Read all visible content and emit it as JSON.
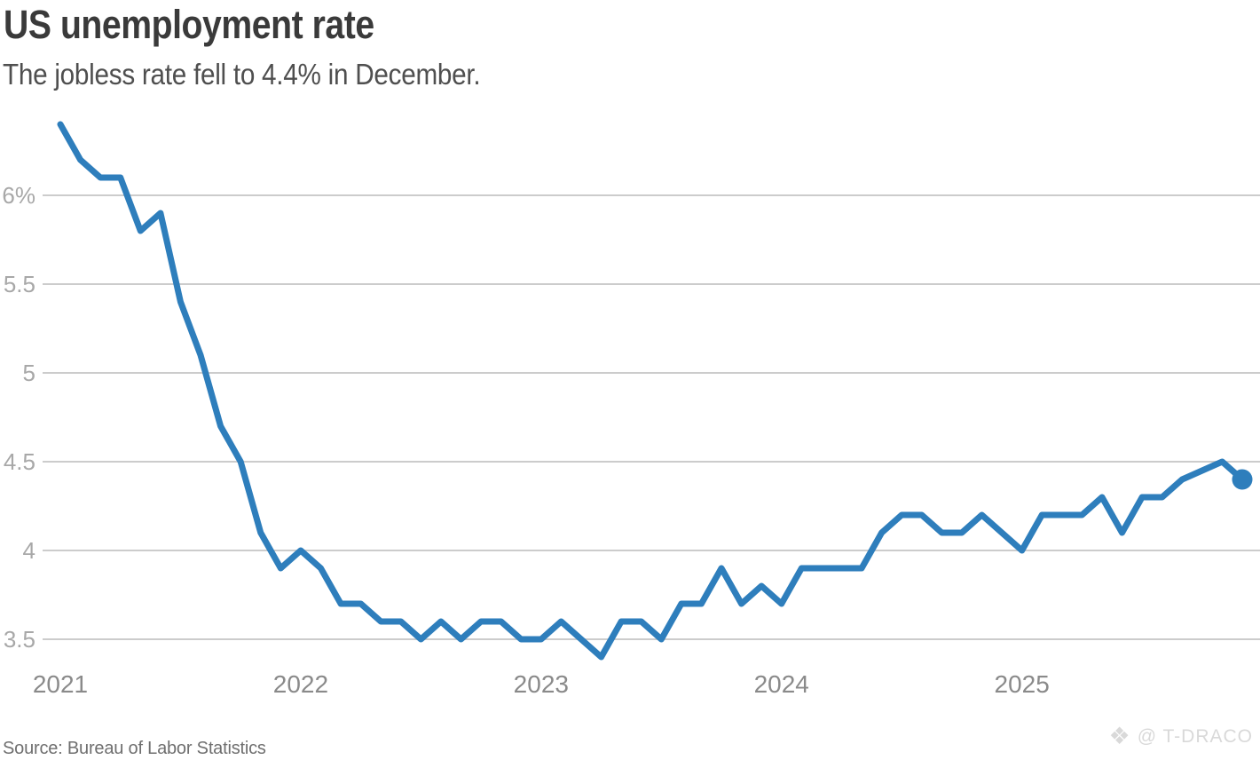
{
  "header": {
    "title": "US unemployment rate",
    "subtitle": "The jobless rate fell to 4.4% in December."
  },
  "footer": {
    "source": "Source: Bureau of Labor Statistics",
    "watermark_icon": "four-diamonds-icon",
    "watermark_icon_glyph": "❖",
    "watermark_text": "@ T-DRACO"
  },
  "colors": {
    "line": "#2e7ebc",
    "end_dot": "#2e7ebc",
    "grid": "#cccccc",
    "title_text": "#3a3a3a",
    "subtitle_text": "#4f4f4f",
    "y_label": "#a8a8a8",
    "x_label": "#8a8a8a",
    "source_text": "#6f6f6f",
    "watermark": "#d9d9d9",
    "background": "#ffffff"
  },
  "chart_data": {
    "type": "line",
    "title": "US unemployment rate",
    "subtitle": "The jobless rate fell to 4.4% in December.",
    "unit": "percent",
    "frequency": "monthly",
    "start_month": "2021-01",
    "end_month": "2025-12",
    "values": [
      6.4,
      6.2,
      6.1,
      6.1,
      5.8,
      5.9,
      5.4,
      5.1,
      4.7,
      4.5,
      4.1,
      3.9,
      4.0,
      3.9,
      3.7,
      3.7,
      3.6,
      3.6,
      3.5,
      3.6,
      3.5,
      3.6,
      3.6,
      3.5,
      3.5,
      3.6,
      3.5,
      3.4,
      3.6,
      3.6,
      3.5,
      3.7,
      3.7,
      3.9,
      3.7,
      3.8,
      3.7,
      3.9,
      3.9,
      3.9,
      3.9,
      4.1,
      4.2,
      4.2,
      4.1,
      4.1,
      4.2,
      4.1,
      4.0,
      4.2,
      4.2,
      4.2,
      4.3,
      4.1,
      4.3,
      4.3,
      4.4,
      4.45,
      4.5,
      4.4
    ],
    "end_value": 4.4,
    "end_dot": true,
    "x_tick_labels": [
      "2021",
      "2022",
      "2023",
      "2024",
      "2025"
    ],
    "x_tick_month_indices": [
      0,
      12,
      24,
      36,
      48
    ],
    "y_tick_labels": [
      "6%",
      "5.5",
      "5",
      "4.5",
      "4",
      "3.5"
    ],
    "y_tick_values": [
      6.0,
      5.5,
      5.0,
      4.5,
      4.0,
      3.5
    ],
    "ylim": [
      3.3,
      6.5
    ],
    "grid": "horizontal-only",
    "legend": "none"
  }
}
